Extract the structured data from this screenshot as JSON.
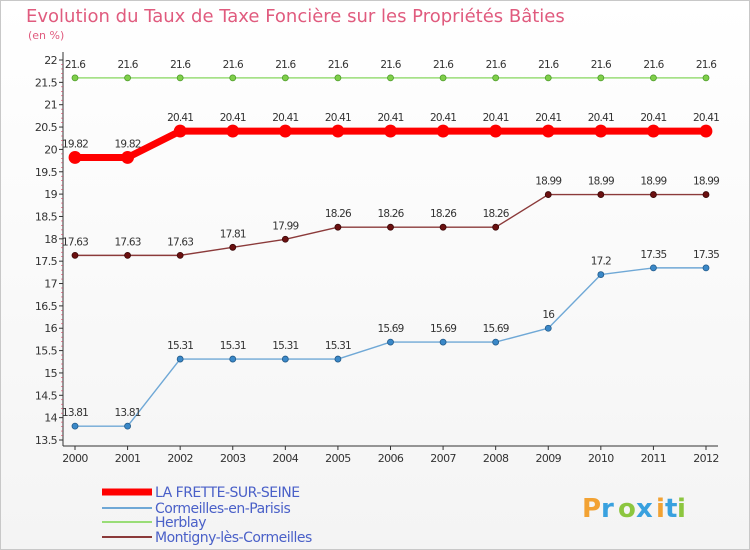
{
  "chart_data": {
    "type": "line",
    "title": "Evolution du Taux de Taxe Foncière sur les Propriétés Bâties",
    "subtitle": "(en %)",
    "xlabel": "",
    "ylabel": "",
    "ylim": [
      13.5,
      22
    ],
    "yticks": [
      "13.5",
      "14",
      "14.5",
      "15",
      "15.5",
      "16",
      "16.5",
      "17",
      "17.5",
      "18",
      "18.5",
      "19",
      "19.5",
      "20",
      "20.5",
      "21",
      "21.5",
      "22"
    ],
    "categories": [
      "2000",
      "2001",
      "2002",
      "2003",
      "2004",
      "2005",
      "2006",
      "2007",
      "2008",
      "2009",
      "2010",
      "2011",
      "2012"
    ],
    "series": [
      {
        "name": "LA FRETTE-SUR-SEINE",
        "color": "#ff0000",
        "values": [
          19.82,
          19.82,
          20.41,
          20.41,
          20.41,
          20.41,
          20.41,
          20.41,
          20.41,
          20.41,
          20.41,
          20.41,
          20.41
        ],
        "labels": [
          "19.82",
          "19.82",
          "20.41",
          "20.41",
          "20.41",
          "20.41",
          "20.41",
          "20.41",
          "20.41",
          "20.41",
          "20.41",
          "20.41",
          "20.41"
        ]
      },
      {
        "name": "Cormeilles-en-Parisis",
        "color": "#6fa8d6",
        "values": [
          13.81,
          13.81,
          15.31,
          15.31,
          15.31,
          15.31,
          15.69,
          15.69,
          15.69,
          16,
          17.2,
          17.35,
          17.35
        ],
        "labels": [
          "13.81",
          "13.81",
          "15.31",
          "15.31",
          "15.31",
          "15.31",
          "15.69",
          "15.69",
          "15.69",
          "16",
          "17.2",
          "17.35",
          "17.35"
        ]
      },
      {
        "name": "Herblay",
        "color": "#99dd77",
        "values": [
          21.6,
          21.6,
          21.6,
          21.6,
          21.6,
          21.6,
          21.6,
          21.6,
          21.6,
          21.6,
          21.6,
          21.6,
          21.6
        ],
        "labels": [
          "21.6",
          "21.6",
          "21.6",
          "21.6",
          "21.6",
          "21.6",
          "21.6",
          "21.6",
          "21.6",
          "21.6",
          "21.6",
          "21.6",
          "21.6"
        ]
      },
      {
        "name": "Montigny-lès-Cormeilles",
        "color": "#8b3a3a",
        "values": [
          17.63,
          17.63,
          17.63,
          17.81,
          17.99,
          18.26,
          18.26,
          18.26,
          18.26,
          18.99,
          18.99,
          18.99,
          18.99
        ],
        "labels": [
          "17.63",
          "17.63",
          "17.63",
          "17.81",
          "17.99",
          "18.26",
          "18.26",
          "18.26",
          "18.26",
          "18.99",
          "18.99",
          "18.99",
          "18.99"
        ]
      }
    ],
    "legend_position": "bottom-left",
    "grid": false
  },
  "logo": {
    "text": "Proxiti",
    "letters": [
      "P",
      "r",
      "o",
      "x",
      "i",
      "t",
      "i"
    ],
    "colors": [
      "#f2a233",
      "#39a1df",
      "#8cc63f",
      "#39a1df",
      "#f2a233",
      "#39a1df",
      "#8cc63f"
    ]
  }
}
